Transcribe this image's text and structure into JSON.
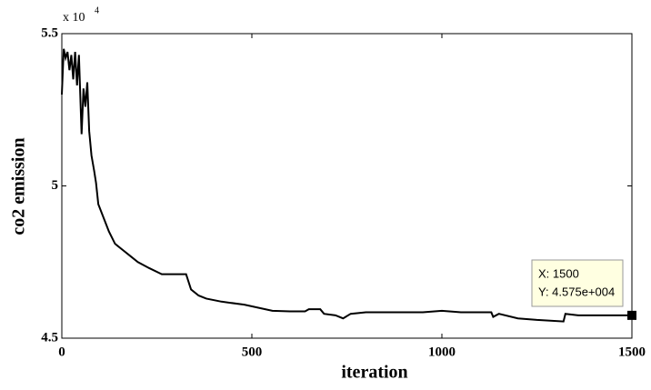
{
  "chart_data": {
    "type": "line",
    "x_label": "iteration",
    "y_label": "co2 emission",
    "y_exponent_base": "x 10",
    "y_exponent": "4",
    "x": [
      0,
      5,
      10,
      15,
      20,
      25,
      30,
      35,
      40,
      45,
      52,
      57,
      62,
      67,
      72,
      78,
      85,
      90,
      96,
      124,
      140,
      160,
      180,
      200,
      230,
      263,
      327,
      340,
      360,
      380,
      420,
      480,
      554,
      600,
      640,
      650,
      680,
      690,
      720,
      740,
      760,
      800,
      900,
      950,
      1000,
      1050,
      1100,
      1130,
      1135,
      1150,
      1200,
      1250,
      1320,
      1325,
      1360,
      1400,
      1500
    ],
    "series": [
      {
        "name": "co2",
        "color": "#000000",
        "values": [
          53000,
          54500,
          54200,
          54400,
          53800,
          54300,
          53500,
          54400,
          53300,
          54300,
          51700,
          53200,
          52600,
          53400,
          51800,
          51000,
          50500,
          50100,
          49400,
          48500,
          48100,
          47900,
          47700,
          47500,
          47300,
          47100,
          47100,
          46600,
          46400,
          46300,
          46200,
          46100,
          45900,
          45880,
          45880,
          45950,
          45950,
          45800,
          45750,
          45650,
          45800,
          45850,
          45850,
          45850,
          45900,
          45850,
          45850,
          45850,
          45700,
          45800,
          45650,
          45600,
          45550,
          45800,
          45750,
          45750,
          45750
        ]
      }
    ],
    "xlim": [
      0,
      1500
    ],
    "xticks": [
      0,
      500,
      1000,
      1500
    ],
    "ylim": [
      45000,
      55000
    ],
    "yticks": [
      {
        "value": 45000,
        "label": "4.5"
      },
      {
        "value": 50000,
        "label": "5"
      },
      {
        "value": 55000,
        "label": "5.5"
      }
    ],
    "datatip": {
      "x": 1500,
      "y": 45750,
      "x_label": "X: 1500",
      "y_label": "Y: 4.575e+004"
    }
  }
}
